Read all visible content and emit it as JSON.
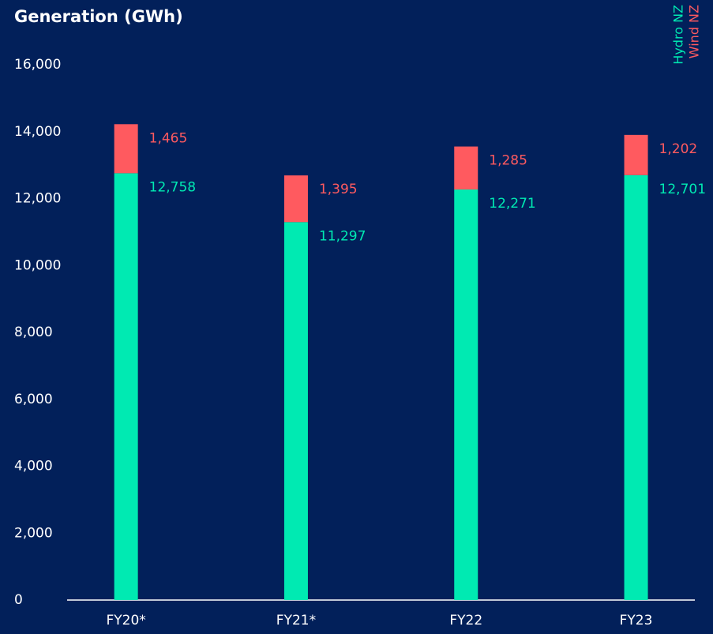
{
  "chart_data": {
    "type": "stacked_bar",
    "title": "Generation (GWh)",
    "categories": [
      "FY20*",
      "FY21*",
      "FY22",
      "FY23"
    ],
    "series": [
      {
        "name": "Hydro NZ",
        "color": "#00eab2",
        "values": [
          12758,
          11297,
          12271,
          12701
        ],
        "value_labels": [
          "12,758",
          "11,297",
          "12,271",
          "12,701"
        ]
      },
      {
        "name": "Wind NZ",
        "color": "#ff5a5f",
        "values": [
          1465,
          1395,
          1285,
          1202
        ],
        "value_labels": [
          "1,465",
          "1,395",
          "1,285",
          "1,202"
        ]
      }
    ],
    "ylim": [
      0,
      16000
    ],
    "yticks": [
      0,
      {
        "value": 2000,
        "label": "2,000"
      },
      {
        "value": 4000,
        "label": "4,000"
      },
      {
        "value": 6000,
        "label": "6,000"
      },
      {
        "value": 8000,
        "label": "8,000"
      },
      {
        "value": 10000,
        "label": "10,000"
      },
      {
        "value": 12000,
        "label": "12,000"
      },
      {
        "value": 14000,
        "label": "14,000"
      },
      {
        "value": 16000,
        "label": "16,000"
      }
    ],
    "grid": false,
    "legend": "top-right"
  }
}
